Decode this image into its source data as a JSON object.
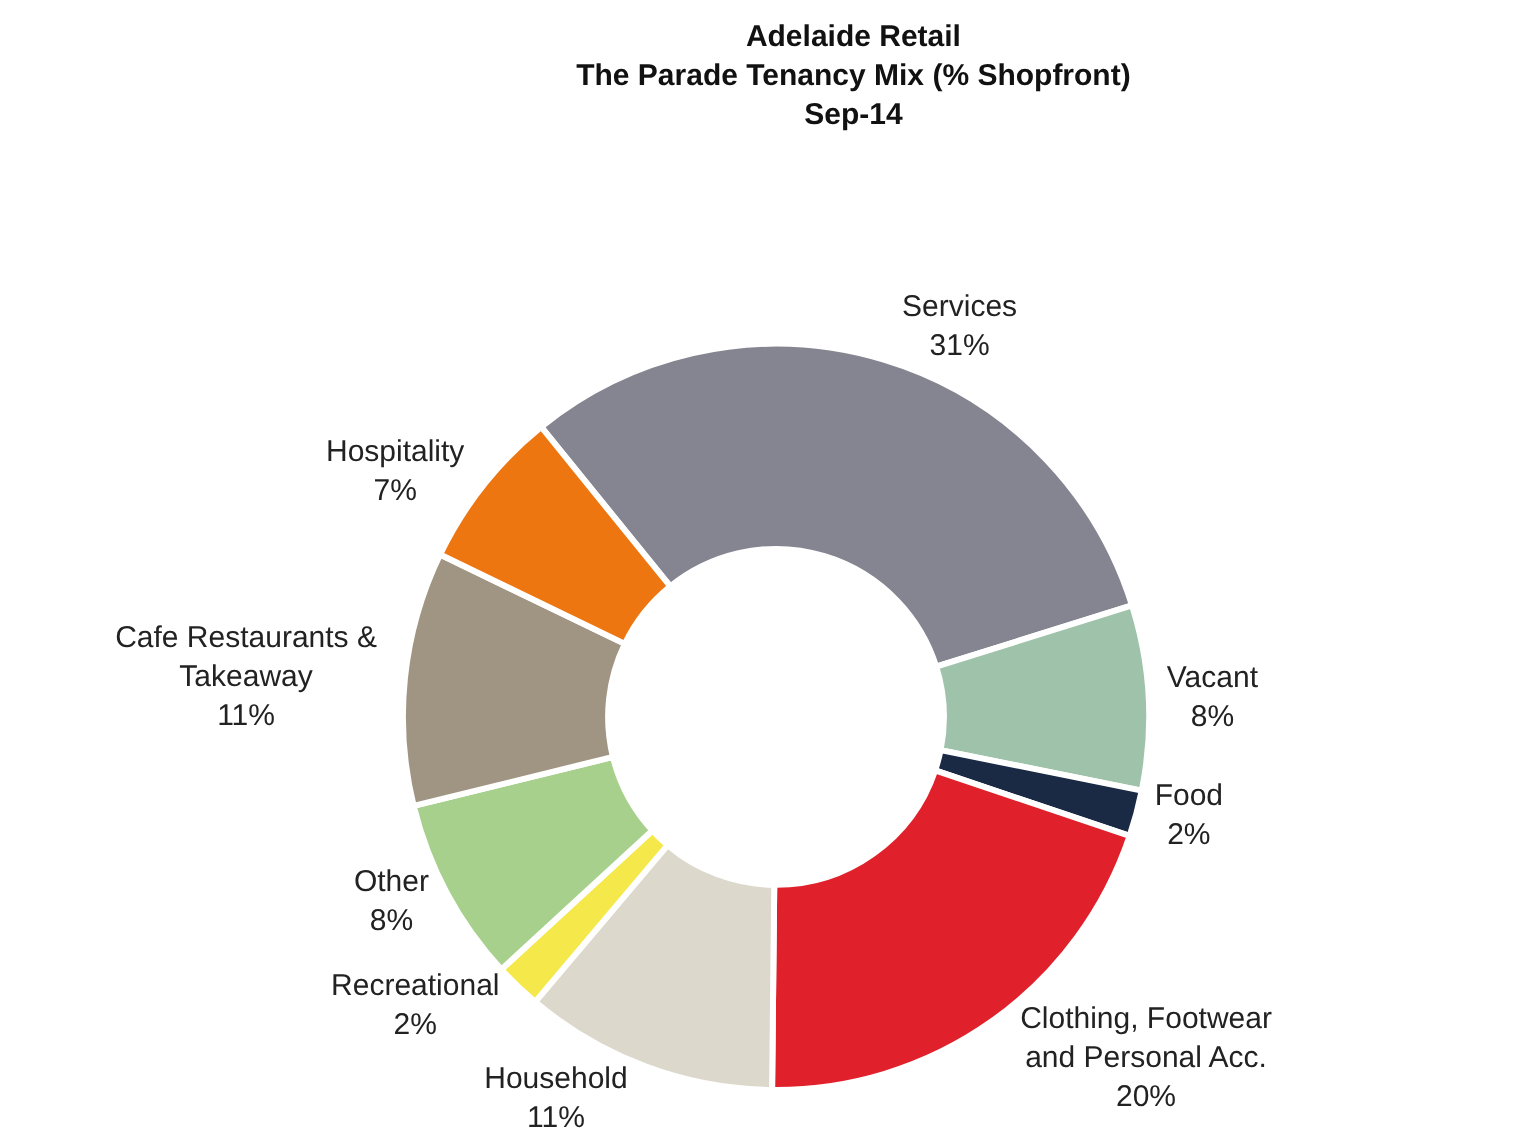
{
  "chart_data": {
    "type": "donut",
    "title": "Adelaide Retail\nThe Parade Tenancy Mix (% Shopfront)\nSep-14",
    "categories": [
      "Services",
      "Vacant",
      "Food",
      "Clothing, Footwear\nand Personal Acc.",
      "Household",
      "Recreational",
      "Other",
      "Cafe Restaurants &\nTakeaway",
      "Hospitality"
    ],
    "values": [
      31,
      8,
      2,
      20,
      11,
      2,
      8,
      11,
      7
    ],
    "colors": [
      "#858592",
      "#9fc3aa",
      "#1a2a45",
      "#e0202a",
      "#ddd8cc",
      "#f5e84a",
      "#a8d08d",
      "#a09583",
      "#ee7611"
    ],
    "value_labels": [
      "31%",
      "8%",
      "2%",
      "20%",
      "11%",
      "2%",
      "8%",
      "11%",
      "7%"
    ],
    "legend": false
  }
}
